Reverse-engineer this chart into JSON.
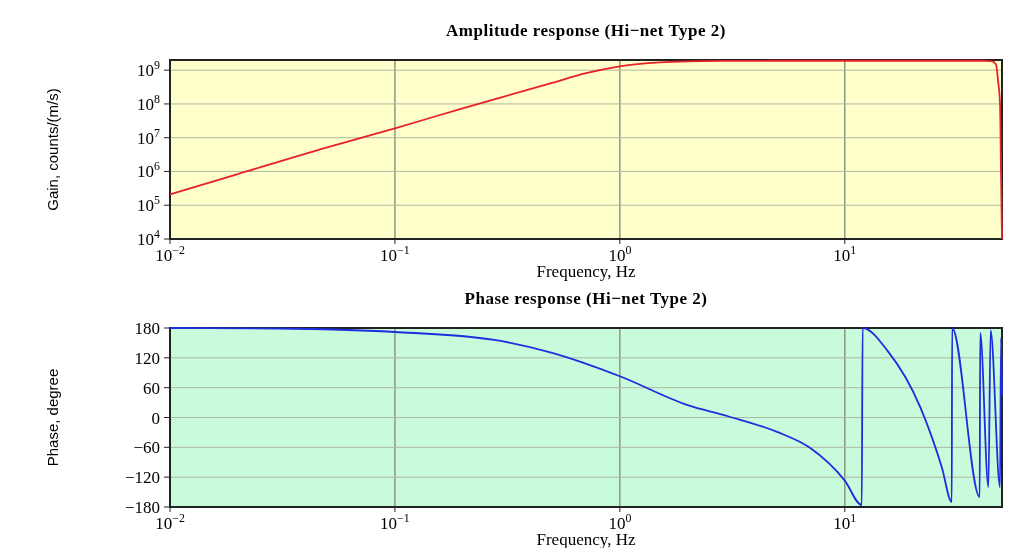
{
  "chart_data": [
    {
      "type": "line",
      "title": "Amplitude response (Hi−net Type 2)",
      "xlabel": "Frequency, Hz",
      "ylabel": "Gain, counts/(m/s)",
      "log": "xy",
      "grid": true,
      "xlim": [
        0.01,
        50
      ],
      "ylim": [
        10000,
        2000000000
      ],
      "xticks": [
        {
          "value": 0.01,
          "label": "10$^{−2}$"
        },
        {
          "value": 0.1,
          "label": "10$^{−1}$"
        },
        {
          "value": 1,
          "label": "10$^{0}$"
        },
        {
          "value": 10,
          "label": "10$^{1}$"
        }
      ],
      "yticks": [
        {
          "value": 10000,
          "label": "10$^{4}$"
        },
        {
          "value": 100000,
          "label": "10$^{5}$"
        },
        {
          "value": 1000000,
          "label": "10$^{6}$"
        },
        {
          "value": 10000000,
          "label": "10$^{7}$"
        },
        {
          "value": 100000000,
          "label": "10$^{8}$"
        },
        {
          "value": 1000000000,
          "label": "10$^{9}$"
        }
      ],
      "x": [
        0.01,
        0.02,
        0.05,
        0.1,
        0.2,
        0.3,
        0.5,
        0.7,
        1,
        1.5,
        2,
        3,
        5,
        10,
        20,
        40,
        42,
        45,
        47,
        48,
        49,
        49.5,
        50
      ],
      "series": [
        {
          "color": "#e8202a",
          "values": [
            210000,
            840000,
            5200000,
            19000000,
            74000000,
            160000000,
            420000000,
            800000000,
            1300000000,
            1700000000,
            1830000000,
            1880000000,
            1900000000,
            1900000000,
            1900000000,
            1900000000,
            1890000000,
            1850000000,
            1500000000,
            500000000,
            100000000,
            1000000,
            10000
          ]
        }
      ]
    },
    {
      "type": "line",
      "title": "Phase response (Hi−net Type 2)",
      "xlabel": "Frequency, Hz",
      "ylabel": "Phase, degree",
      "log": "x",
      "grid": true,
      "xlim": [
        0.01,
        50
      ],
      "ylim": [
        -180,
        180
      ],
      "xticks": [
        {
          "value": 0.01,
          "label": "10$^{−2}$"
        },
        {
          "value": 0.1,
          "label": "10$^{−1}$"
        },
        {
          "value": 1,
          "label": "10$^{0}$"
        },
        {
          "value": 10,
          "label": "10$^{1}$"
        }
      ],
      "yticks": [
        {
          "value": -180,
          "label": "−180"
        },
        {
          "value": -120,
          "label": "−120"
        },
        {
          "value": -60,
          "label": "−60"
        },
        0,
        60,
        120,
        180
      ],
      "x": [
        0.01,
        0.03,
        0.1,
        0.277,
        0.5,
        1,
        2,
        3,
        5,
        7,
        10,
        11.9,
        12,
        15.5,
        21.7,
        27,
        29.9,
        30,
        39.8,
        40,
        43.5,
        44.5,
        49,
        49.5,
        50
      ],
      "series": [
        {
          "color": "#1c2ee0",
          "values": [
            180,
            179,
            172,
            156,
            130,
            83,
            25,
            3,
            -29,
            -61,
            -127,
            -176,
            180,
            134,
            20,
            -100,
            -170,
            180,
            -160,
            170,
            -140,
            175,
            -140,
            160,
            46
          ]
        }
      ]
    }
  ]
}
